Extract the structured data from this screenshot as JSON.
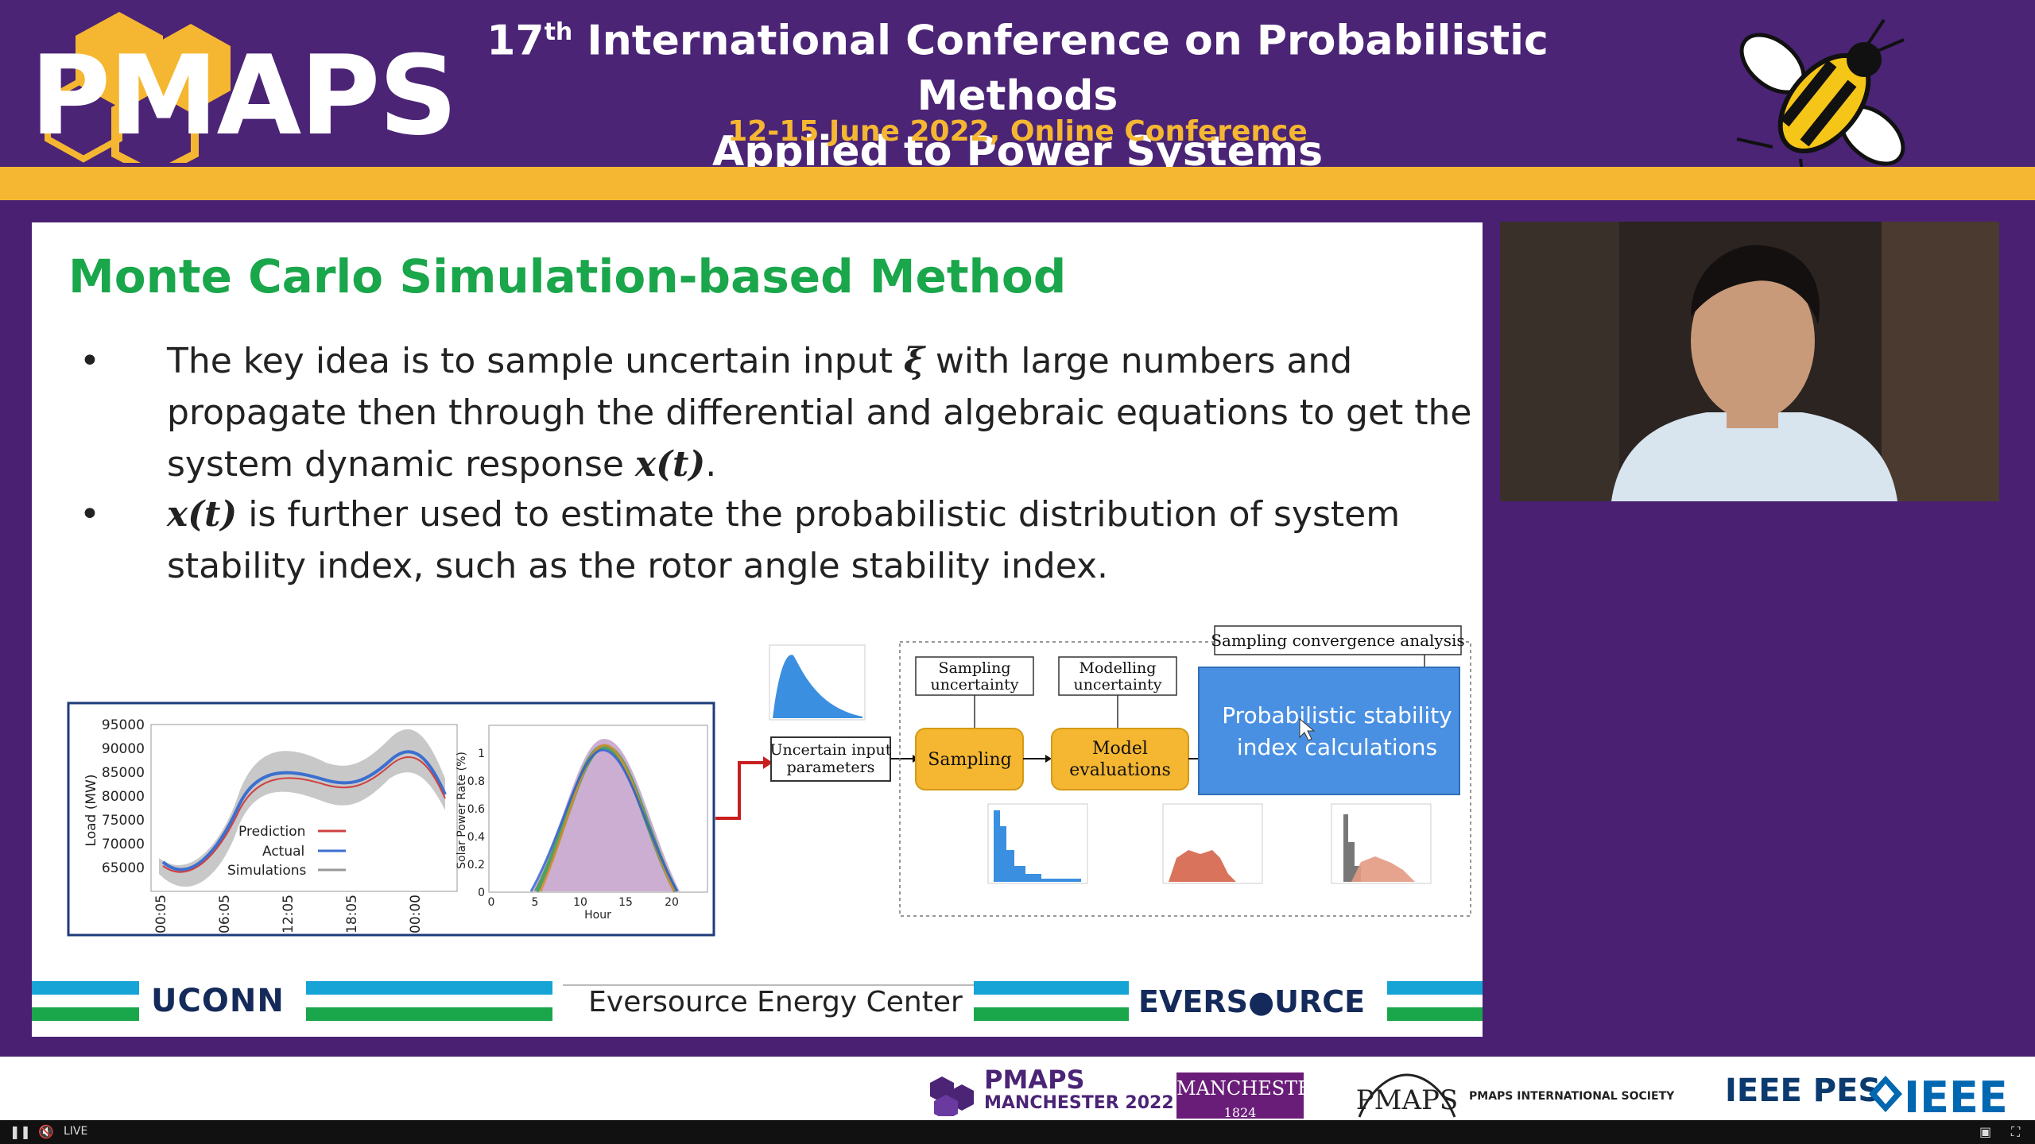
{
  "header": {
    "logo_text": "PMAPS",
    "title_line1_prefix": "17",
    "title_line1_sup": "th",
    "title_line1_rest": " International Conference on Probabilistic Methods",
    "title_line2": "Applied to Power Systems",
    "date_line": "12-15 June 2022, Online Conference"
  },
  "slide": {
    "title": "Monte Carlo Simulation-based Method",
    "bullets": [
      {
        "dot": "•",
        "part1": "The key idea is to sample uncertain input ",
        "math1": "ξ",
        "part2": " with large numbers and propagate then through the differential and algebraic equations to get the system dynamic response ",
        "math2": "x(t)",
        "part3": "."
      },
      {
        "dot": "•",
        "math1": "x(t)",
        "part1": " is further used to estimate the probabilistic distribution of system stability index, such as the rotor angle stability index."
      }
    ],
    "figure": {
      "load_chart": {
        "y_ticks": [
          "95000",
          "90000",
          "85000",
          "80000",
          "75000",
          "70000",
          "65000"
        ],
        "x_ticks": [
          "00:05",
          "06:05",
          "12:05",
          "18:05",
          "00:00"
        ],
        "ylabel": "Load (MW)",
        "legend": [
          "Prediction",
          "Actual",
          "Simulations"
        ]
      },
      "solar_chart": {
        "y_ticks": [
          "1",
          "0.8",
          "0.6",
          "0.4",
          "0.2",
          "0"
        ],
        "x_ticks": [
          "0",
          "5",
          "10",
          "15",
          "20"
        ],
        "ylabel": "Solar Power Rate (%)",
        "xlabel": "Hour"
      },
      "uncertain_input": [
        "Uncertain input",
        "parameters"
      ],
      "sampling_uncertainty": [
        "Sampling",
        "uncertainty"
      ],
      "modelling_uncertainty": [
        "Modelling",
        "uncertainty"
      ],
      "sampling_box": "Sampling",
      "model_eval": [
        "Model",
        "evaluations"
      ],
      "prob_box": [
        "Probabilistic stability",
        "index calculations"
      ],
      "convergence": "Sampling convergence analysis"
    },
    "footer": {
      "uconn": "UCONN",
      "eec": "Eversource  Energy Center",
      "eversource": "EVERS●URCE"
    }
  },
  "sponsors": {
    "pmaps": "PMAPS",
    "pmaps_sub": "MANCHESTER 2022",
    "manchester": "MANCHESTER",
    "manchester_year": "1824",
    "pis": "PMAPS INTERNATIONAL SOCIETY",
    "pes": "IEEE PES",
    "ieee": "IEEE"
  },
  "player": {
    "live": "LIVE",
    "pause_icon": "pause-icon",
    "mute_icon": "mute-icon"
  },
  "colors": {
    "header_bg": "#4b2476",
    "gold": "#f5b731",
    "title_green": "#1aa64a",
    "box_orange": "#f5b731",
    "box_blue": "#3b8fe0"
  }
}
